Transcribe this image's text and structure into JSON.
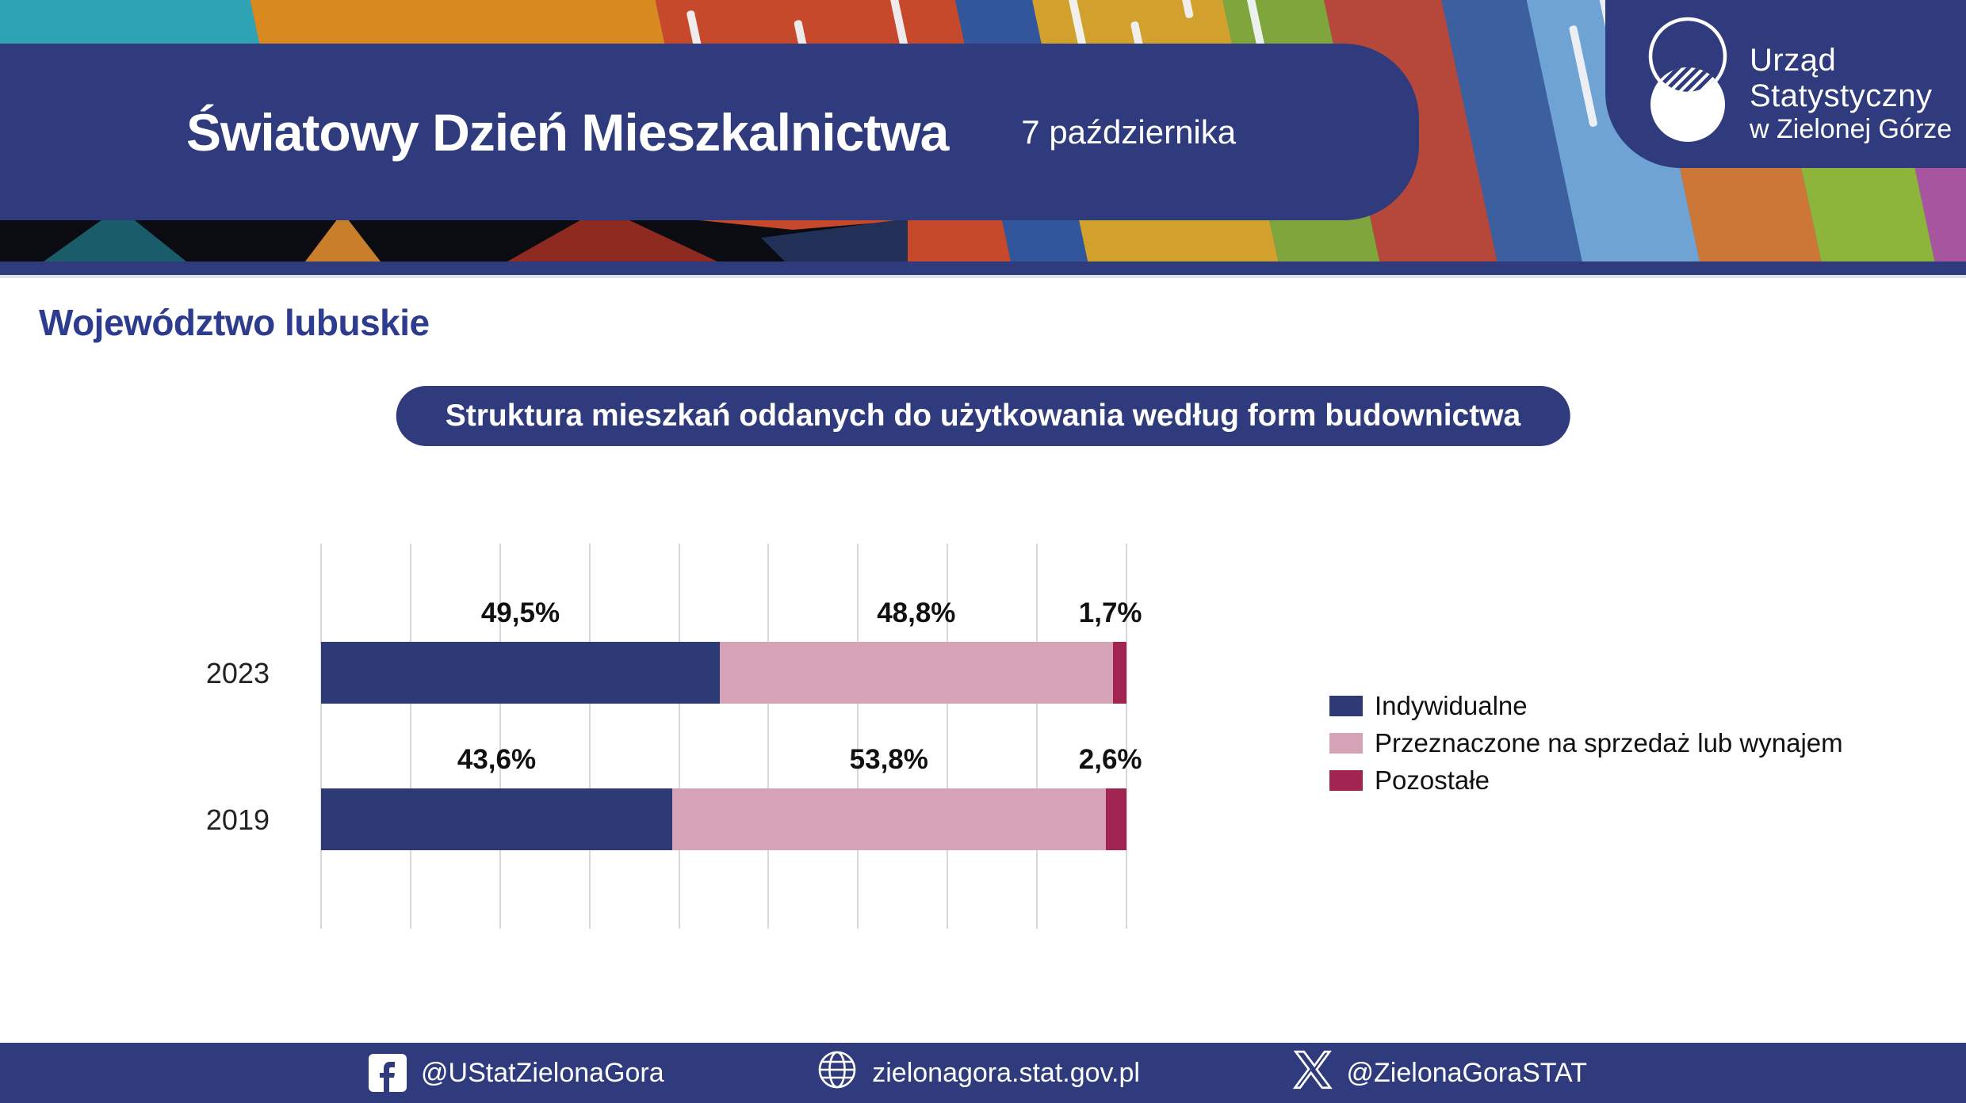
{
  "header": {
    "title": "Światowy Dzień Mieszkalnictwa",
    "date": "7 października",
    "logo": {
      "line1": "Urząd Statystyczny",
      "line2": "w Zielonej Górze"
    }
  },
  "page": {
    "region_heading": "Województwo lubuskie",
    "chart_title": "Struktura mieszkań oddanych do użytkowania według form budownictwa"
  },
  "chart_data": {
    "type": "bar",
    "orientation": "horizontal",
    "stacked": true,
    "title": "Struktura mieszkań oddanych do użytkowania według form budownictwa",
    "categories": [
      "2023",
      "2019"
    ],
    "series": [
      {
        "name": "Indywidualne",
        "color": "#2e3a76",
        "values": [
          49.5,
          43.6
        ],
        "labels": [
          "49,5%",
          "43,6%"
        ]
      },
      {
        "name": "Przeznaczone na sprzedaż lub wynajem",
        "color": "#d5a3b5",
        "values": [
          48.8,
          53.8
        ],
        "labels": [
          "48,8%",
          "53,8%"
        ]
      },
      {
        "name": "Pozostałe",
        "color": "#a22451",
        "values": [
          1.7,
          2.6
        ],
        "labels": [
          "1,7%",
          "2,6%"
        ]
      }
    ],
    "unit": "%",
    "xlim": [
      0,
      100
    ],
    "grid": true,
    "gridline_count": 10,
    "legend_position": "right"
  },
  "footer": {
    "facebook_handle": "@UStatZielonaGora",
    "website": "zielonagora.stat.gov.pl",
    "x_handle": "@ZielonaGoraSTAT"
  },
  "colors": {
    "brand_navy": "#2f3b7c",
    "heading_blue": "#2d3c8e",
    "bar_navy": "#2e3a76",
    "bar_pink": "#d5a3b5",
    "bar_maroon": "#a22451",
    "gridline": "#d8d8d8"
  }
}
